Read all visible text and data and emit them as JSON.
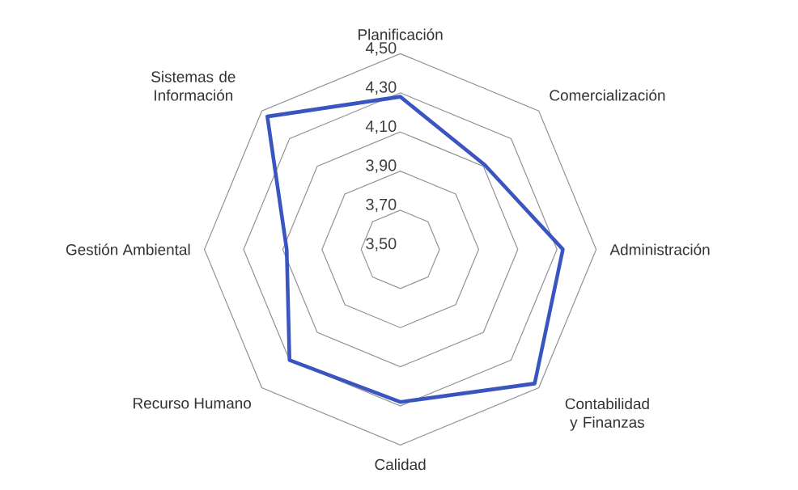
{
  "chart_data": {
    "type": "radar",
    "categories": [
      "Planificación",
      "Comercialización",
      "Administración",
      "Contabilidad y Finanzas",
      "Calidad",
      "Recurso Humano",
      "Gestión Ambiental",
      "Sistemas de Información"
    ],
    "series": [
      {
        "color": "#3a55bf",
        "values": [
          4.28,
          4.11,
          4.33,
          4.47,
          4.28,
          4.3,
          4.08,
          4.46
        ]
      }
    ],
    "ylim": [
      3.5,
      4.5
    ],
    "yticks": [
      {
        "value": 3.5,
        "label": "3,50"
      },
      {
        "value": 3.7,
        "label": "3,70"
      },
      {
        "value": 3.9,
        "label": "3,90"
      },
      {
        "value": 4.1,
        "label": "4,10"
      },
      {
        "value": 4.3,
        "label": "4,30"
      },
      {
        "value": 4.5,
        "label": "4,50"
      }
    ],
    "grid": true
  }
}
